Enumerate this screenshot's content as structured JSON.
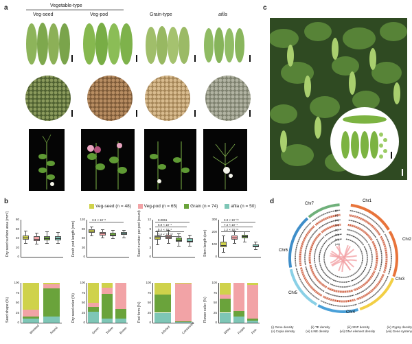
{
  "panel_a": {
    "letter": "a",
    "group_header": "Vegetable-type",
    "columns": [
      "Veg-seed",
      "Veg-pod",
      "Grain-type",
      "afila"
    ]
  },
  "panel_b": {
    "letter": "b",
    "legend": [
      {
        "label": "Veg-seed (n = 48)",
        "color": "#cfd24b"
      },
      {
        "label": "Veg-pod (n = 65)",
        "color": "#f2a3a6"
      },
      {
        "label": "Grain (n = 74)",
        "color": "#6aa33b"
      },
      {
        "label": "afila (n = 50)",
        "color": "#7ec6b6"
      }
    ]
  },
  "panel_c": {
    "letter": "c"
  },
  "panel_d": {
    "letter": "d",
    "chromosomes": [
      "Chr1",
      "Chr2",
      "Chr3",
      "Chr4",
      "Chr5",
      "Chr6",
      "Chr7"
    ],
    "ring_labels": [
      "(i)",
      "(ii)",
      "(iii)",
      "(iv)",
      "(v)",
      "(vi)",
      "(vii)",
      "(viii)"
    ],
    "legend": [
      "(i) Gene density",
      "(ii) TE density",
      "(iii) SNP density",
      "(iv) Gypsy density",
      "(v) Copia density",
      "(vi) LINE density",
      "(vii) DNA element density",
      "(viii) Gene synteny"
    ]
  },
  "chart_data": [
    {
      "type": "box",
      "ylabel": "Dry seed surface area (mm²)",
      "ylim": [
        0,
        80
      ],
      "yticks": [
        0,
        20,
        40,
        60,
        80
      ],
      "series": [
        {
          "name": "Veg-seed",
          "min": 30,
          "q1": 37,
          "median": 42,
          "q3": 46,
          "max": 56
        },
        {
          "name": "Veg-pod",
          "min": 28,
          "q1": 34,
          "median": 39,
          "q3": 44,
          "max": 52
        },
        {
          "name": "Grain",
          "min": 30,
          "q1": 36,
          "median": 40,
          "q3": 44,
          "max": 55
        },
        {
          "name": "afila",
          "min": 29,
          "q1": 36,
          "median": 40,
          "q3": 45,
          "max": 53
        }
      ]
    },
    {
      "type": "box",
      "ylabel": "Fresh pod length (mm)",
      "ylim": [
        0,
        120
      ],
      "yticks": [
        0,
        30,
        60,
        90,
        120
      ],
      "annotations": [
        "3.9 × 10⁻⁸"
      ],
      "series": [
        {
          "name": "Veg-seed",
          "min": 68,
          "q1": 78,
          "median": 84,
          "q3": 90,
          "max": 98
        },
        {
          "name": "Veg-pod",
          "min": 62,
          "q1": 70,
          "median": 76,
          "q3": 80,
          "max": 88
        },
        {
          "name": "Grain",
          "min": 60,
          "q1": 67,
          "median": 72,
          "q3": 78,
          "max": 86
        },
        {
          "name": "afila",
          "min": 62,
          "q1": 70,
          "median": 75,
          "q3": 79,
          "max": 86
        }
      ]
    },
    {
      "type": "box",
      "ylabel": "Seed number per pod (count)",
      "ylim": [
        0,
        12
      ],
      "yticks": [
        0,
        3,
        6,
        9,
        12
      ],
      "annotations": [
        "0.0061",
        "6.9 × 10⁻⁴",
        "5.2 × 10⁻⁴",
        "3.6 × 10⁻¹⁰"
      ],
      "series": [
        {
          "name": "Veg-seed",
          "min": 4,
          "q1": 5.5,
          "median": 6.3,
          "q3": 7,
          "max": 8.5
        },
        {
          "name": "Veg-pod",
          "min": 4.5,
          "q1": 5.8,
          "median": 6.5,
          "q3": 7.2,
          "max": 8.6
        },
        {
          "name": "Grain",
          "min": 3.5,
          "q1": 4.8,
          "median": 5.4,
          "q3": 6.2,
          "max": 7.5
        },
        {
          "name": "afila",
          "min": 3.5,
          "q1": 4.6,
          "median": 5.2,
          "q3": 6,
          "max": 7.2
        }
      ]
    },
    {
      "type": "box",
      "ylabel": "Stem length (cm)",
      "ylim": [
        0,
        300
      ],
      "yticks": [
        0,
        100,
        200,
        300
      ],
      "annotations": [
        "3.3 × 10⁻¹⁸",
        "7.4 × 10⁻⁴",
        "1.2 × 10⁻¹¹"
      ],
      "series": [
        {
          "name": "Veg-seed",
          "min": 40,
          "q1": 75,
          "median": 95,
          "q3": 120,
          "max": 175
        },
        {
          "name": "Veg-pod",
          "min": 110,
          "q1": 140,
          "median": 155,
          "q3": 175,
          "max": 210
        },
        {
          "name": "Grain",
          "min": 120,
          "q1": 150,
          "median": 165,
          "q3": 178,
          "max": 205
        },
        {
          "name": "afila",
          "min": 60,
          "q1": 80,
          "median": 90,
          "q3": 100,
          "max": 125
        }
      ]
    },
    {
      "type": "stacked-bar",
      "ylabel": "Seed shape (%)",
      "ylim": [
        0,
        100
      ],
      "yticks": [
        0,
        25,
        50,
        75,
        100
      ],
      "categories": [
        "Wrinkled",
        "Round"
      ],
      "segments": [
        [
          {
            "c": "afila",
            "v": 10
          },
          {
            "c": "Grain",
            "v": 5
          },
          {
            "c": "Veg-pod",
            "v": 18
          },
          {
            "c": "Veg-seed",
            "v": 67
          }
        ],
        [
          {
            "c": "afila",
            "v": 15
          },
          {
            "c": "Grain",
            "v": 72
          },
          {
            "c": "Veg-pod",
            "v": 10
          },
          {
            "c": "Veg-seed",
            "v": 3
          }
        ]
      ]
    },
    {
      "type": "stacked-bar",
      "ylabel": "Dry seed color (%)",
      "ylim": [
        0,
        100
      ],
      "yticks": [
        0,
        25,
        50,
        75,
        100
      ],
      "categories": [
        "Green",
        "Yellow",
        "Brown"
      ],
      "segments": [
        [
          {
            "c": "afila",
            "v": 28
          },
          {
            "c": "Grain",
            "v": 12
          },
          {
            "c": "Veg-pod",
            "v": 10
          },
          {
            "c": "Veg-seed",
            "v": 50
          }
        ],
        [
          {
            "c": "afila",
            "v": 10
          },
          {
            "c": "Grain",
            "v": 62
          },
          {
            "c": "Veg-pod",
            "v": 16
          },
          {
            "c": "Veg-seed",
            "v": 12
          }
        ],
        [
          {
            "c": "afila",
            "v": 10
          },
          {
            "c": "Grain",
            "v": 25
          },
          {
            "c": "Veg-pod",
            "v": 65
          },
          {
            "c": "Veg-seed",
            "v": 0
          }
        ]
      ]
    },
    {
      "type": "stacked-bar",
      "ylabel": "Pod form (%)",
      "ylim": [
        0,
        100
      ],
      "yticks": [
        0,
        25,
        50,
        75,
        100
      ],
      "categories": [
        "Infurled",
        "Constricted"
      ],
      "segments": [
        [
          {
            "c": "afila",
            "v": 25
          },
          {
            "c": "Grain",
            "v": 45
          },
          {
            "c": "Veg-pod",
            "v": 0
          },
          {
            "c": "Veg-seed",
            "v": 30
          }
        ],
        [
          {
            "c": "afila",
            "v": 2
          },
          {
            "c": "Grain",
            "v": 2
          },
          {
            "c": "Veg-pod",
            "v": 94
          },
          {
            "c": "Veg-seed",
            "v": 2
          }
        ]
      ]
    },
    {
      "type": "stacked-bar",
      "ylabel": "Flower color (%)",
      "ylim": [
        0,
        100
      ],
      "yticks": [
        0,
        25,
        50,
        75,
        100
      ],
      "categories": [
        "White",
        "Purple",
        "Pink"
      ],
      "segments": [
        [
          {
            "c": "afila",
            "v": 25
          },
          {
            "c": "Grain",
            "v": 35
          },
          {
            "c": "Veg-pod",
            "v": 10
          },
          {
            "c": "Veg-seed",
            "v": 30
          }
        ],
        [
          {
            "c": "afila",
            "v": 15
          },
          {
            "c": "Grain",
            "v": 15
          },
          {
            "c": "Veg-pod",
            "v": 70
          },
          {
            "c": "Veg-seed",
            "v": 0
          }
        ],
        [
          {
            "c": "afila",
            "v": 5
          },
          {
            "c": "Grain",
            "v": 5
          },
          {
            "c": "Veg-pod",
            "v": 85
          },
          {
            "c": "Veg-seed",
            "v": 5
          }
        ]
      ]
    }
  ]
}
